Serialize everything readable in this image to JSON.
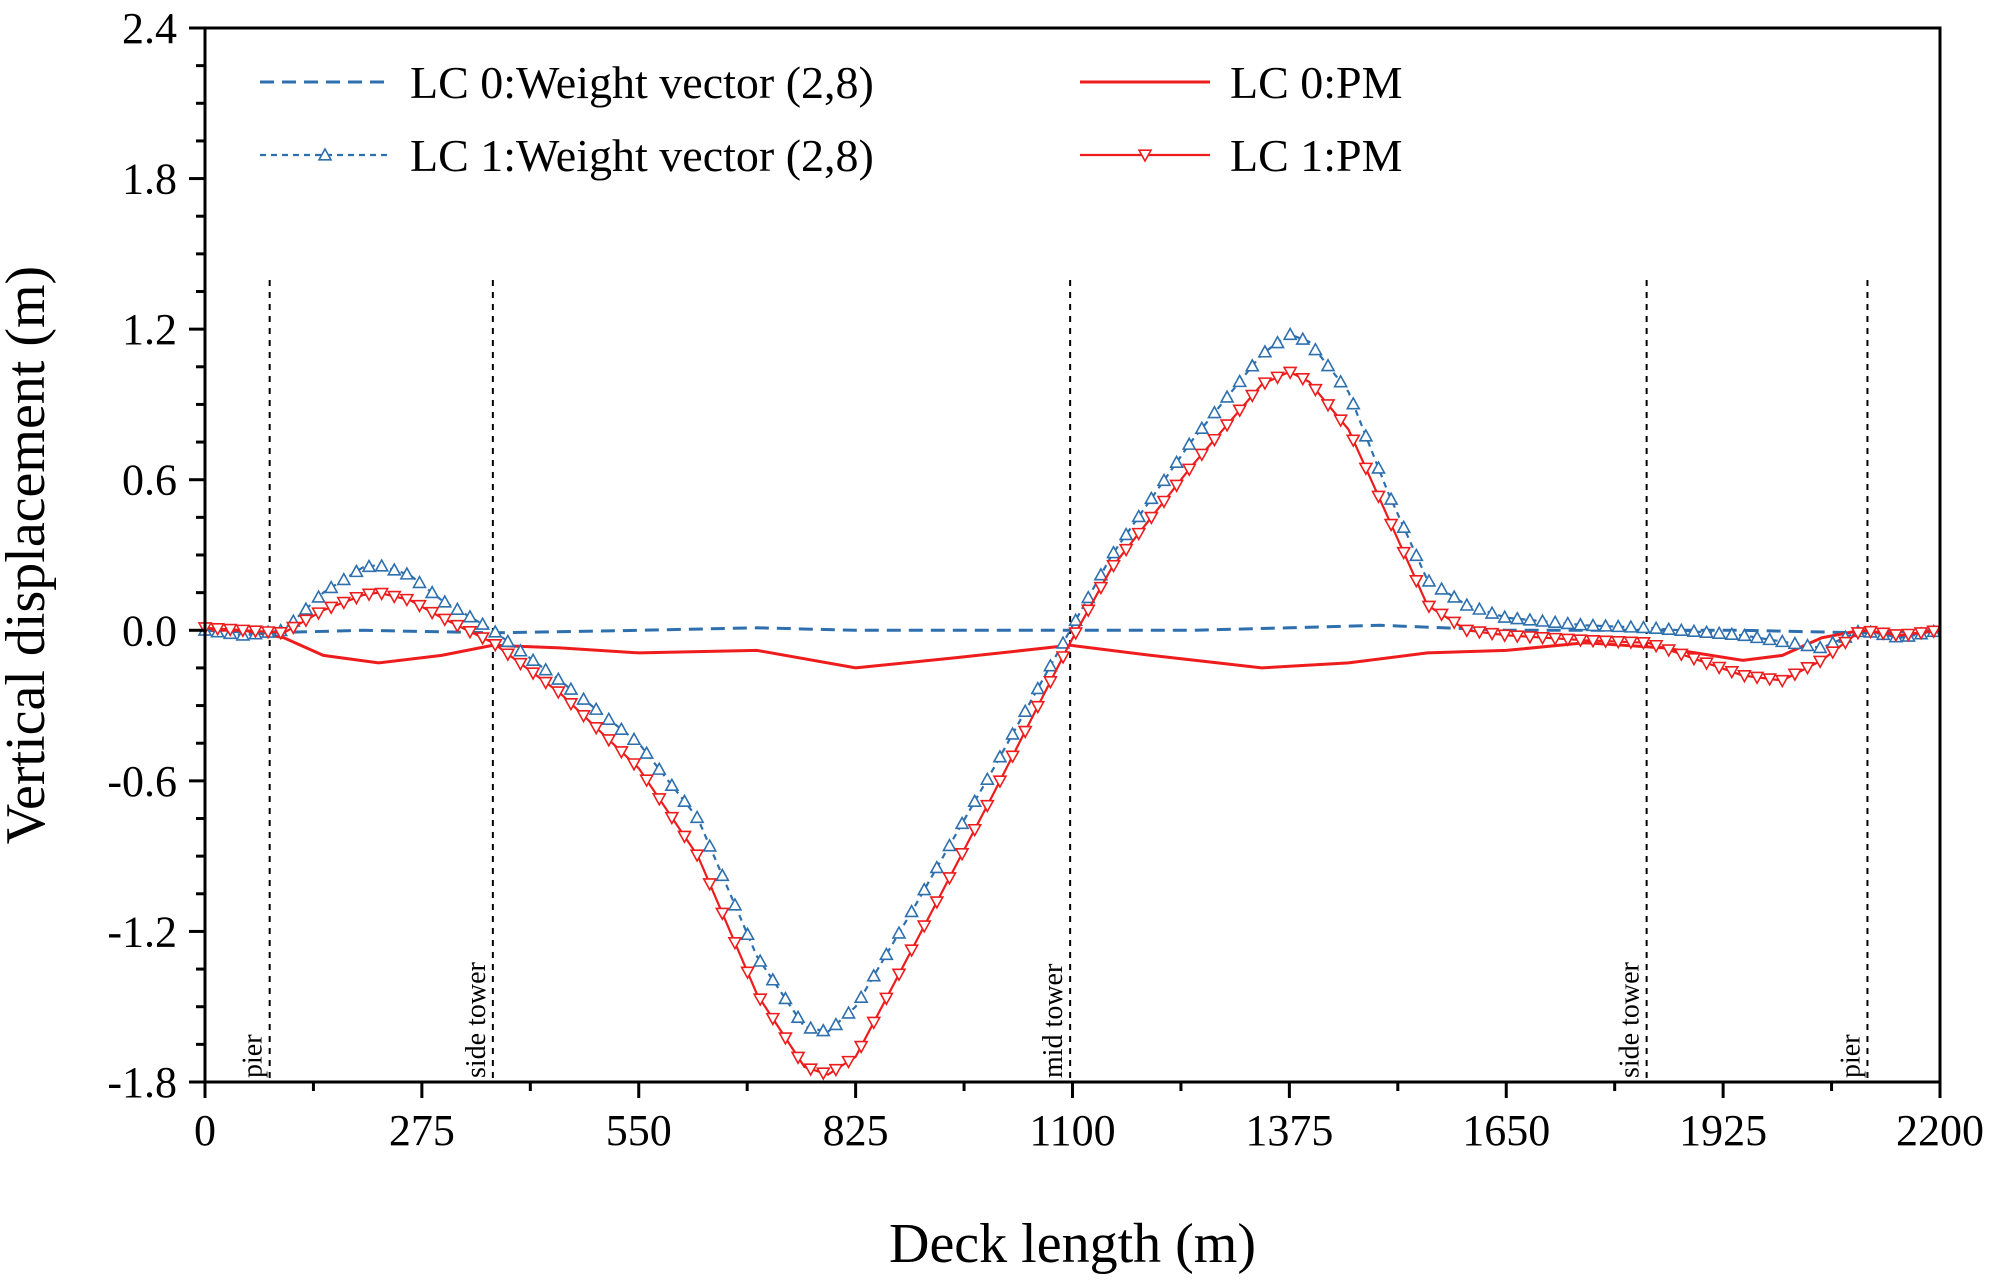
{
  "chart_data": {
    "type": "line",
    "title": "",
    "xlabel": "Deck length (m)",
    "ylabel": "Vertical displacement (m)",
    "xlim": [
      0,
      2200
    ],
    "ylim": [
      -1.8,
      2.4
    ],
    "xticks": [
      0,
      275,
      550,
      825,
      1100,
      1375,
      1650,
      1925,
      2200
    ],
    "yticks": [
      -1.8,
      -1.2,
      -0.6,
      0.0,
      0.6,
      1.2,
      1.8,
      2.4
    ],
    "xtick_labels": [
      "0",
      "275",
      "550",
      "825",
      "1100",
      "1375",
      "1650",
      "1925",
      "2200"
    ],
    "ytick_labels": [
      "-1.8",
      "-1.2",
      "-0.6",
      "0.0",
      "0.6",
      "1.2",
      "1.8",
      "2.4"
    ],
    "grid": false,
    "legend_position": "top",
    "annotations": [
      {
        "label": "pier",
        "x": 82
      },
      {
        "label": "side tower",
        "x": 365
      },
      {
        "label": "mid tower",
        "x": 1097
      },
      {
        "label": "side tower",
        "x": 1828
      },
      {
        "label": "pier",
        "x": 2108
      }
    ],
    "series": [
      {
        "name": "LC 0:Weight vector (2,8)",
        "color": "#2e6fae",
        "style": "dashed",
        "marker": "none",
        "x": [
          0,
          80,
          200,
          365,
          550,
          700,
          825,
          1000,
          1097,
          1250,
          1375,
          1490,
          1650,
          1830,
          1950,
          2100,
          2200
        ],
        "y": [
          0.0,
          -0.01,
          0.0,
          -0.01,
          0.0,
          0.01,
          0.0,
          0.0,
          0.0,
          0.0,
          0.01,
          0.02,
          0.0,
          0.0,
          0.0,
          -0.01,
          0.0
        ]
      },
      {
        "name": "LC 0:PM",
        "color": "#ee1c1c",
        "style": "solid",
        "marker": "none",
        "x": [
          0,
          50,
          100,
          150,
          220,
          300,
          365,
          450,
          550,
          700,
          825,
          950,
          1097,
          1200,
          1340,
          1450,
          1550,
          1650,
          1750,
          1850,
          1950,
          2000,
          2050,
          2100,
          2150,
          2200
        ],
        "y": [
          0.0,
          0.0,
          -0.03,
          -0.1,
          -0.13,
          -0.1,
          -0.06,
          -0.07,
          -0.09,
          -0.08,
          -0.15,
          -0.11,
          -0.06,
          -0.1,
          -0.15,
          -0.13,
          -0.09,
          -0.08,
          -0.05,
          -0.07,
          -0.12,
          -0.1,
          -0.03,
          0.0,
          -0.02,
          0.0
        ]
      },
      {
        "name": "LC 1:Weight vector (2,8)",
        "color": "#2e6fae",
        "style": "dashed",
        "marker": "triangle-up",
        "x": [
          0,
          50,
          100,
          150,
          200,
          220,
          260,
          300,
          365,
          450,
          550,
          625,
          700,
          760,
          790,
          825,
          900,
          1000,
          1097,
          1150,
          1250,
          1340,
          1375,
          1400,
          1450,
          1500,
          1550,
          1600,
          1650,
          1750,
          1830,
          1950,
          2050,
          2100,
          2150,
          2200
        ],
        "y": [
          0.0,
          -0.02,
          0.0,
          0.15,
          0.25,
          0.26,
          0.22,
          0.12,
          0.0,
          -0.2,
          -0.45,
          -0.75,
          -1.3,
          -1.58,
          -1.6,
          -1.5,
          -1.1,
          -0.55,
          0.0,
          0.3,
          0.75,
          1.1,
          1.18,
          1.15,
          0.95,
          0.55,
          0.2,
          0.1,
          0.05,
          0.02,
          0.01,
          -0.02,
          -0.07,
          0.0,
          -0.03,
          0.0
        ]
      },
      {
        "name": "LC 1:PM",
        "color": "#ee1c1c",
        "style": "solid",
        "marker": "triangle-down",
        "x": [
          0,
          50,
          100,
          150,
          200,
          220,
          260,
          300,
          365,
          450,
          550,
          625,
          700,
          760,
          790,
          825,
          900,
          1000,
          1097,
          1150,
          1250,
          1340,
          1375,
          1400,
          1450,
          1500,
          1550,
          1600,
          1650,
          1750,
          1830,
          1950,
          2000,
          2050,
          2100,
          2150,
          2200
        ],
        "y": [
          0.01,
          0.0,
          -0.01,
          0.08,
          0.14,
          0.15,
          0.12,
          0.05,
          -0.05,
          -0.25,
          -0.55,
          -0.9,
          -1.45,
          -1.74,
          -1.77,
          -1.7,
          -1.25,
          -0.65,
          -0.05,
          0.25,
          0.65,
          0.98,
          1.03,
          0.99,
          0.8,
          0.45,
          0.1,
          0.0,
          -0.02,
          -0.04,
          -0.05,
          -0.18,
          -0.2,
          -0.12,
          0.0,
          -0.02,
          0.0
        ]
      }
    ]
  }
}
